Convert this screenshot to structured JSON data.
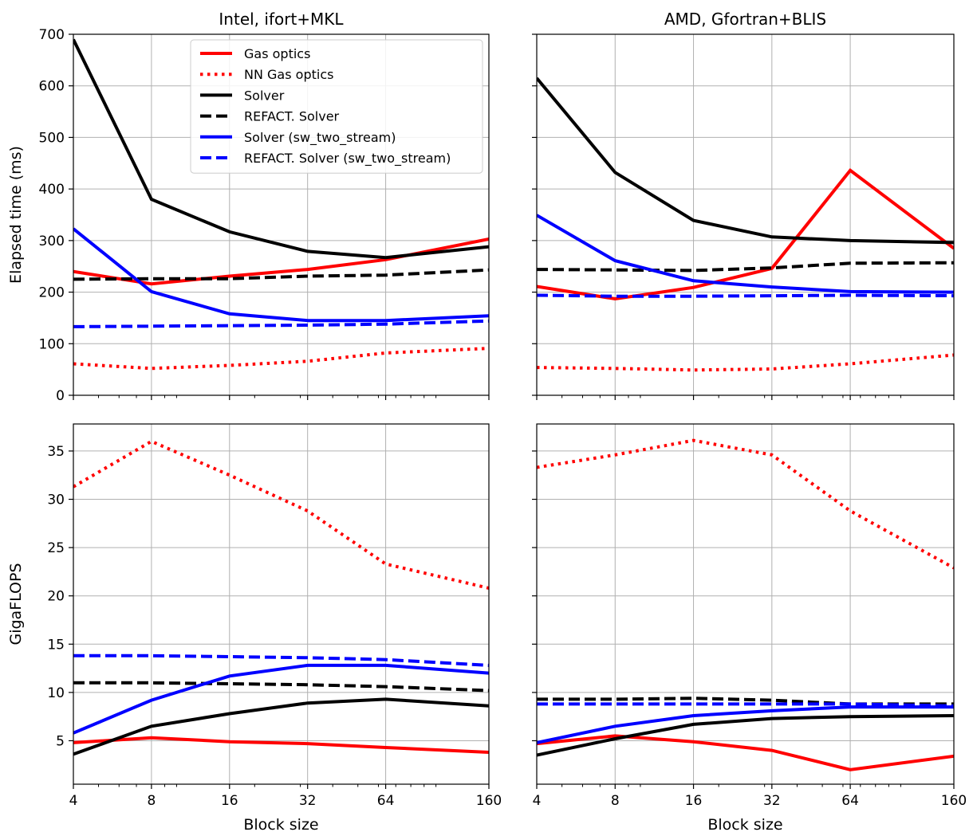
{
  "series_styles": [
    {
      "name": "Gas optics",
      "color": "#ff0000",
      "dash": "solid"
    },
    {
      "name": "NN Gas optics",
      "color": "#ff0000",
      "dash": "dotted"
    },
    {
      "name": "Solver",
      "color": "#000000",
      "dash": "solid"
    },
    {
      "name": "REFACT. Solver",
      "color": "#000000",
      "dash": "dashed"
    },
    {
      "name": "Solver (sw_two_stream)",
      "color": "#0000ff",
      "dash": "solid"
    },
    {
      "name": "REFACT. Solver (sw_two_stream)",
      "color": "#0000ff",
      "dash": "dashed"
    }
  ],
  "chart_data": [
    {
      "type": "line",
      "title": "Intel, ifort+MKL",
      "xlabel": "",
      "ylabel": "Elapsed time (ms)",
      "x": [
        4,
        8,
        16,
        32,
        64,
        160
      ],
      "x_scale": "log",
      "xlim": [
        4,
        160
      ],
      "ylim": [
        0,
        700
      ],
      "yticks": [
        0,
        100,
        200,
        300,
        400,
        500,
        600,
        700
      ],
      "yticklabels": [
        "0",
        "100",
        "200",
        "300",
        "400",
        "500",
        "600",
        "700"
      ],
      "grid": true,
      "legend": "top-center",
      "series": [
        {
          "name": "Gas optics",
          "values": [
            240,
            216,
            231,
            244,
            263,
            303
          ]
        },
        {
          "name": "NN Gas optics",
          "values": [
            61,
            52,
            58,
            66,
            82,
            91
          ]
        },
        {
          "name": "Solver",
          "values": [
            690,
            380,
            317,
            279,
            267,
            288
          ]
        },
        {
          "name": "REFACT. Solver",
          "values": [
            225,
            226,
            226,
            231,
            233,
            243
          ]
        },
        {
          "name": "Solver (sw_two_stream)",
          "values": [
            323,
            201,
            158,
            145,
            145,
            154
          ]
        },
        {
          "name": "REFACT. Solver (sw_two_stream)",
          "values": [
            133,
            134,
            135,
            136,
            138,
            144
          ]
        }
      ]
    },
    {
      "type": "line",
      "title": "AMD, Gfortran+BLIS",
      "xlabel": "",
      "ylabel": "",
      "x": [
        4,
        8,
        16,
        32,
        64,
        160
      ],
      "x_scale": "log",
      "xlim": [
        4,
        160
      ],
      "ylim": [
        0,
        700
      ],
      "yticks": [
        0,
        100,
        200,
        300,
        400,
        500,
        600,
        700
      ],
      "yticklabels": [],
      "grid": true,
      "legend": "none",
      "series": [
        {
          "name": "Gas optics",
          "values": [
            211,
            187,
            209,
            246,
            436,
            285
          ]
        },
        {
          "name": "NN Gas optics",
          "values": [
            54,
            52,
            49,
            51,
            61,
            78
          ]
        },
        {
          "name": "Solver",
          "values": [
            615,
            432,
            339,
            307,
            300,
            296
          ]
        },
        {
          "name": "REFACT. Solver",
          "values": [
            244,
            243,
            242,
            247,
            256,
            257
          ]
        },
        {
          "name": "Solver (sw_two_stream)",
          "values": [
            349,
            261,
            222,
            210,
            201,
            200
          ]
        },
        {
          "name": "REFACT. Solver (sw_two_stream)",
          "values": [
            194,
            192,
            192,
            193,
            194,
            193
          ]
        }
      ]
    },
    {
      "type": "line",
      "title": "",
      "xlabel": "Block size",
      "ylabel": "GigaFLOPS",
      "x": [
        4,
        8,
        16,
        32,
        64,
        160
      ],
      "x_scale": "log",
      "xlim": [
        4,
        160
      ],
      "xticklabels": [
        "4",
        "8",
        "16",
        "32",
        "64",
        "160"
      ],
      "ylim": [
        0.5,
        37.8
      ],
      "yticks": [
        5,
        10,
        15,
        20,
        25,
        30,
        35
      ],
      "yticklabels": [
        "5",
        "10",
        "15",
        "20",
        "25",
        "30",
        "35"
      ],
      "grid": true,
      "legend": "none",
      "series": [
        {
          "name": "Gas optics",
          "values": [
            4.8,
            5.3,
            4.9,
            4.7,
            4.3,
            3.8
          ]
        },
        {
          "name": "NN Gas optics",
          "values": [
            31.3,
            36.0,
            32.5,
            28.8,
            23.3,
            20.8
          ]
        },
        {
          "name": "Solver",
          "values": [
            3.6,
            6.5,
            7.8,
            8.9,
            9.3,
            8.6
          ]
        },
        {
          "name": "REFACT. Solver",
          "values": [
            11.0,
            11.0,
            10.9,
            10.8,
            10.6,
            10.2
          ]
        },
        {
          "name": "Solver (sw_two_stream)",
          "values": [
            5.8,
            9.2,
            11.7,
            12.8,
            12.8,
            12.0
          ]
        },
        {
          "name": "REFACT. Solver (sw_two_stream)",
          "values": [
            13.8,
            13.8,
            13.7,
            13.6,
            13.4,
            12.8
          ]
        }
      ]
    },
    {
      "type": "line",
      "title": "",
      "xlabel": "Block size",
      "ylabel": "",
      "x": [
        4,
        8,
        16,
        32,
        64,
        160
      ],
      "x_scale": "log",
      "xlim": [
        4,
        160
      ],
      "xticklabels": [
        "4",
        "8",
        "16",
        "32",
        "64",
        "160"
      ],
      "ylim": [
        0.5,
        37.8
      ],
      "yticks": [
        5,
        10,
        15,
        20,
        25,
        30,
        35
      ],
      "yticklabels": [],
      "grid": true,
      "legend": "none",
      "series": [
        {
          "name": "Gas optics",
          "values": [
            4.7,
            5.5,
            4.9,
            4.0,
            2.0,
            3.4
          ]
        },
        {
          "name": "NN Gas optics",
          "values": [
            33.3,
            34.6,
            36.1,
            34.6,
            28.8,
            22.9
          ]
        },
        {
          "name": "Solver",
          "values": [
            3.5,
            5.2,
            6.7,
            7.3,
            7.5,
            7.6
          ]
        },
        {
          "name": "REFACT. Solver",
          "values": [
            9.3,
            9.3,
            9.4,
            9.2,
            8.8,
            8.8
          ]
        },
        {
          "name": "Solver (sw_two_stream)",
          "values": [
            4.8,
            6.5,
            7.6,
            8.1,
            8.5,
            8.5
          ]
        },
        {
          "name": "REFACT. Solver (sw_two_stream)",
          "values": [
            8.8,
            8.8,
            8.8,
            8.8,
            8.8,
            8.6
          ]
        }
      ]
    }
  ]
}
